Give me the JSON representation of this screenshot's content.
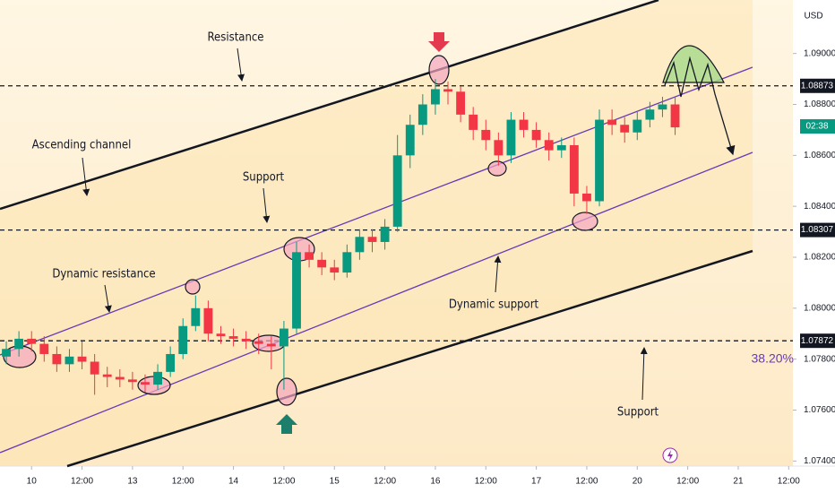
{
  "chart_data": {
    "type": "candlestick",
    "currency": "USD",
    "countdown": "02:38",
    "fib_label": "38.20%",
    "x": [
      -6,
      -3,
      0,
      3,
      6,
      9,
      12,
      15,
      18,
      21,
      24,
      27,
      30,
      33,
      36,
      39,
      42,
      45,
      48,
      51,
      54,
      57,
      60,
      63,
      66,
      69,
      72,
      75,
      78,
      81,
      84,
      87,
      90,
      93,
      96,
      99,
      102,
      105,
      108,
      111,
      114,
      117,
      120,
      123,
      126,
      129,
      132,
      135,
      138,
      141,
      144,
      147,
      150,
      153
    ],
    "open": [
      1.0781,
      1.0784,
      1.0788,
      1.0786,
      1.0782,
      1.0778,
      1.0781,
      1.0779,
      1.0774,
      1.0773,
      1.0772,
      1.0771,
      1.077,
      1.0775,
      1.0782,
      1.0793,
      1.08,
      1.079,
      1.0789,
      1.0788,
      1.0787,
      1.0786,
      1.0785,
      1.0792,
      1.0822,
      1.0819,
      1.0816,
      1.0814,
      1.0822,
      1.0828,
      1.0826,
      1.0832,
      1.086,
      1.0872,
      1.088,
      1.0886,
      1.0885,
      1.0876,
      1.087,
      1.0866,
      1.086,
      1.0874,
      1.087,
      1.0866,
      1.0862,
      1.0864,
      1.0845,
      1.0842,
      1.0874,
      1.0872,
      1.0869,
      1.0874,
      1.0878,
      1.088
    ],
    "high": [
      1.0787,
      1.0791,
      1.0791,
      1.0789,
      1.0785,
      1.0784,
      1.0787,
      1.0782,
      1.0777,
      1.0776,
      1.0775,
      1.0774,
      1.0778,
      1.0785,
      1.0796,
      1.0805,
      1.0803,
      1.0793,
      1.0792,
      1.0791,
      1.079,
      1.0789,
      1.0795,
      1.0826,
      1.0825,
      1.0822,
      1.0819,
      1.0825,
      1.0831,
      1.0831,
      1.0835,
      1.0868,
      1.0876,
      1.0884,
      1.089,
      1.0889,
      1.0887,
      1.0879,
      1.0874,
      1.0869,
      1.0877,
      1.0877,
      1.0873,
      1.0869,
      1.0867,
      1.0867,
      1.0848,
      1.0878,
      1.0878,
      1.0875,
      1.0877,
      1.0881,
      1.0883,
      1.0883
    ],
    "low": [
      1.0778,
      1.0781,
      1.0783,
      1.0779,
      1.0775,
      1.0775,
      1.0776,
      1.0766,
      1.0769,
      1.0769,
      1.0768,
      1.0767,
      1.0768,
      1.0773,
      1.078,
      1.0791,
      1.0787,
      1.0786,
      1.0785,
      1.0784,
      1.0782,
      1.0776,
      1.0768,
      1.079,
      1.0816,
      1.0813,
      1.0811,
      1.0812,
      1.0819,
      1.0822,
      1.0823,
      1.083,
      1.0855,
      1.0868,
      1.0876,
      1.088,
      1.0873,
      1.0866,
      1.0862,
      1.0856,
      1.0857,
      1.0867,
      1.0863,
      1.0858,
      1.0859,
      1.084,
      1.0837,
      1.084,
      1.0868,
      1.0865,
      1.0866,
      1.0871,
      1.0875,
      1.0868
    ],
    "close": [
      1.0784,
      1.0788,
      1.0786,
      1.0782,
      1.0778,
      1.0781,
      1.0779,
      1.0774,
      1.0773,
      1.0772,
      1.0771,
      1.077,
      1.0775,
      1.0782,
      1.0793,
      1.08,
      1.079,
      1.0789,
      1.0788,
      1.0787,
      1.0786,
      1.0785,
      1.0792,
      1.0822,
      1.0819,
      1.0816,
      1.0814,
      1.0822,
      1.0828,
      1.0826,
      1.0832,
      1.086,
      1.0872,
      1.088,
      1.0886,
      1.0885,
      1.0876,
      1.087,
      1.0866,
      1.086,
      1.0874,
      1.087,
      1.0866,
      1.0862,
      1.0864,
      1.0845,
      1.0842,
      1.0874,
      1.0872,
      1.0869,
      1.0874,
      1.0878,
      1.088,
      1.0871
    ],
    "up_color": "#089981",
    "down_color": "#f23645",
    "levels": [
      1.08873,
      1.08307,
      1.07872
    ],
    "annotations": [
      "Resistance",
      "Ascending channel",
      "Support",
      "Dynamic resistance",
      "Dynamic support",
      "Support"
    ],
    "xlim": [
      -7.5,
      181
    ],
    "xticks": [
      {
        "value": 0,
        "label": "10"
      },
      {
        "value": 12,
        "label": "12:00"
      },
      {
        "value": 24,
        "label": "13"
      },
      {
        "value": 36,
        "label": "12:00"
      },
      {
        "value": 48,
        "label": "14"
      },
      {
        "value": 60,
        "label": "12:00"
      },
      {
        "value": 72,
        "label": "15"
      },
      {
        "value": 84,
        "label": "12:00"
      },
      {
        "value": 96,
        "label": "16"
      },
      {
        "value": 108,
        "label": "12:00"
      },
      {
        "value": 120,
        "label": "17"
      },
      {
        "value": 132,
        "label": "12:00"
      },
      {
        "value": 144,
        "label": "20"
      },
      {
        "value": 156,
        "label": "12:00"
      },
      {
        "value": 168,
        "label": "21"
      },
      {
        "value": 180,
        "label": "12:00"
      }
    ],
    "ylim": [
      1.0738,
      1.0921
    ],
    "yticks": [
      {
        "value": 1.074,
        "label": "1.07400"
      },
      {
        "value": 1.076,
        "label": "1.07600"
      },
      {
        "value": 1.078,
        "label": "1.07800"
      },
      {
        "value": 1.08,
        "label": "1.08000"
      },
      {
        "value": 1.082,
        "label": "1.08200"
      },
      {
        "value": 1.084,
        "label": "1.08400"
      },
      {
        "value": 1.086,
        "label": "1.08600"
      },
      {
        "value": 1.088,
        "label": "1.08800"
      },
      {
        "value": 1.09,
        "label": "1.09000"
      }
    ]
  }
}
